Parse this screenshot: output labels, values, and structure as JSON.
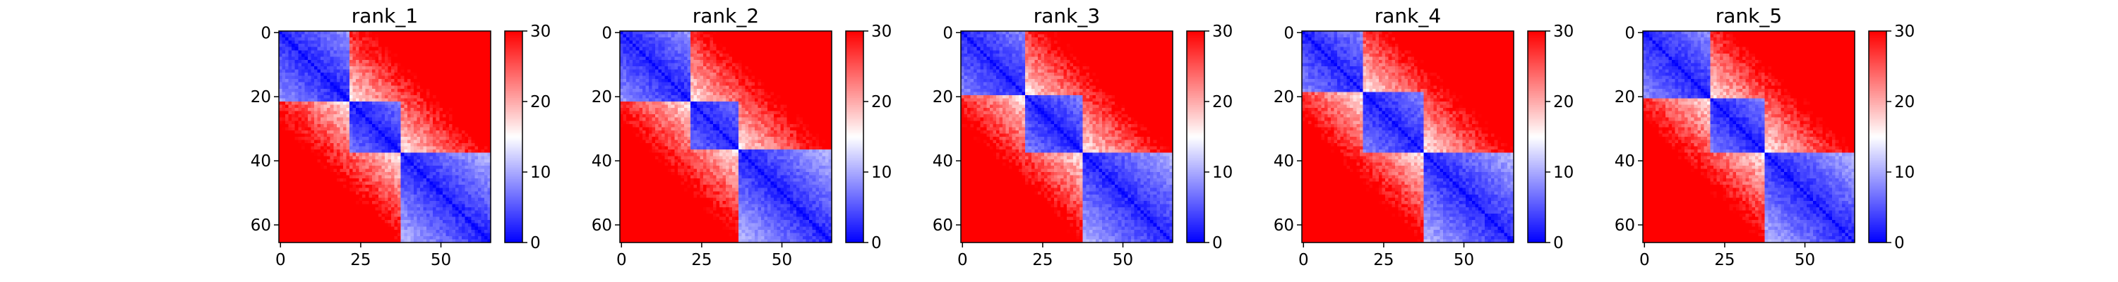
{
  "chart_data": [
    {
      "type": "heatmap",
      "title": "rank_1",
      "n": 66,
      "xticks": [
        0,
        25,
        50
      ],
      "yticks": [
        0,
        20,
        40,
        60
      ],
      "colorbar": {
        "min": 0,
        "max": 30,
        "ticks": [
          0,
          10,
          20,
          30
        ]
      },
      "colormap": {
        "low": "#0000ff",
        "mid": "#ffffff",
        "high": "#ff0000"
      },
      "domains": [
        {
          "start": 0,
          "end": 22
        },
        {
          "start": 22,
          "end": 38
        },
        {
          "start": 38,
          "end": 66
        }
      ],
      "values_note": ""
    },
    {
      "type": "heatmap",
      "title": "rank_2",
      "n": 66,
      "xticks": [
        0,
        25,
        50
      ],
      "yticks": [
        0,
        20,
        40,
        60
      ],
      "colorbar": {
        "min": 0,
        "max": 30,
        "ticks": [
          0,
          10,
          20,
          30
        ]
      },
      "colormap": {
        "low": "#0000ff",
        "mid": "#ffffff",
        "high": "#ff0000"
      },
      "domains": [
        {
          "start": 0,
          "end": 22
        },
        {
          "start": 22,
          "end": 37
        },
        {
          "start": 37,
          "end": 66
        }
      ]
    },
    {
      "type": "heatmap",
      "title": "rank_3",
      "n": 66,
      "xticks": [
        0,
        25,
        50
      ],
      "yticks": [
        0,
        20,
        40,
        60
      ],
      "colorbar": {
        "min": 0,
        "max": 30,
        "ticks": [
          0,
          10,
          20,
          30
        ]
      },
      "colormap": {
        "low": "#0000ff",
        "mid": "#ffffff",
        "high": "#ff0000"
      },
      "domains": [
        {
          "start": 0,
          "end": 20
        },
        {
          "start": 20,
          "end": 38
        },
        {
          "start": 38,
          "end": 66
        }
      ]
    },
    {
      "type": "heatmap",
      "title": "rank_4",
      "n": 66,
      "xticks": [
        0,
        25,
        50
      ],
      "yticks": [
        0,
        20,
        40,
        60
      ],
      "colorbar": {
        "min": 0,
        "max": 30,
        "ticks": [
          0,
          10,
          20,
          30
        ]
      },
      "colormap": {
        "low": "#0000ff",
        "mid": "#ffffff",
        "high": "#ff0000"
      },
      "domains": [
        {
          "start": 0,
          "end": 19
        },
        {
          "start": 19,
          "end": 38
        },
        {
          "start": 38,
          "end": 66
        }
      ]
    },
    {
      "type": "heatmap",
      "title": "rank_5",
      "n": 66,
      "xticks": [
        0,
        25,
        50
      ],
      "yticks": [
        0,
        20,
        40,
        60
      ],
      "colorbar": {
        "min": 0,
        "max": 30,
        "ticks": [
          0,
          10,
          20,
          30
        ]
      },
      "colormap": {
        "low": "#0000ff",
        "mid": "#ffffff",
        "high": "#ff0000"
      },
      "domains": [
        {
          "start": 0,
          "end": 21
        },
        {
          "start": 21,
          "end": 38
        },
        {
          "start": 38,
          "end": 66
        }
      ]
    }
  ]
}
